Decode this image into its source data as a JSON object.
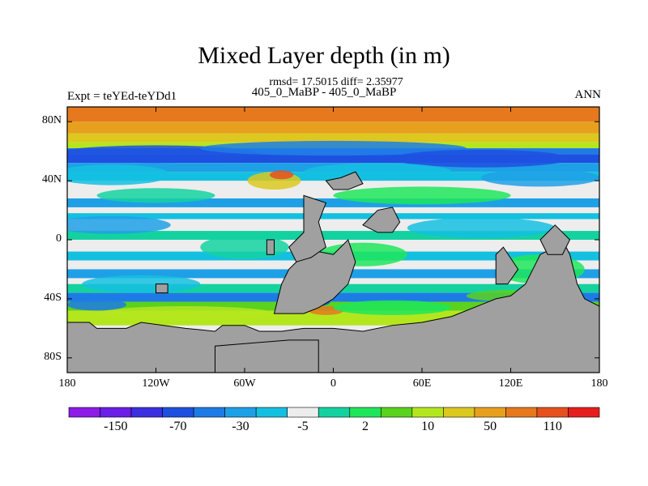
{
  "chart_data": {
    "type": "heatmap",
    "title": "Mixed Layer depth (in m)",
    "stats_line": "rmsd= 17.5015 diff= 2.35977",
    "subtitle": "405_0_MaBP - 405_0_MaBP",
    "left_label": "Expt = teYEd-teYDd1",
    "right_label": "ANN",
    "x_ticks": [
      "180",
      "120W",
      "60W",
      "0",
      "60E",
      "120E",
      "180"
    ],
    "x_tick_values": [
      -180,
      -120,
      -60,
      0,
      60,
      120,
      180
    ],
    "y_ticks": [
      "80N",
      "40N",
      "0",
      "40S",
      "80S"
    ],
    "y_tick_values": [
      80,
      40,
      0,
      -40,
      -80
    ],
    "xlim": [
      -180,
      180
    ],
    "ylim": [
      -90,
      90
    ],
    "colorbar": {
      "labels": [
        "-150",
        "-70",
        "-30",
        "-5",
        "2",
        "10",
        "50",
        "110"
      ],
      "colors": [
        "#8c1ce6",
        "#6a1ee6",
        "#3c2fe0",
        "#1e50e0",
        "#1e7be6",
        "#1ea0e6",
        "#14c0e0",
        "#ededed",
        "#14d2a0",
        "#1ee65a",
        "#5ad21e",
        "#b4e61e",
        "#dcc81e",
        "#e6a01e",
        "#e6781e",
        "#e6501e",
        "#e61e1e"
      ]
    },
    "land_color": "#a0a0a0"
  }
}
